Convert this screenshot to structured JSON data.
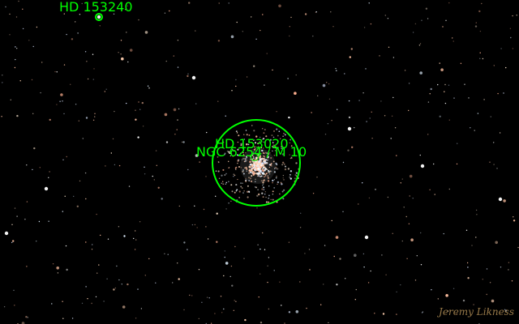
{
  "annotations": {
    "color": "#00ff00",
    "objects": [
      {
        "name": "HD 153240",
        "type": "star"
      },
      {
        "name": "HD 153020",
        "type": "star"
      },
      {
        "name": "NGC 6254 / M 10",
        "type": "globular-cluster"
      }
    ]
  },
  "signature": {
    "text": "Jeremy Likness",
    "color": "#c8a060"
  },
  "background": {
    "color": "#000000"
  }
}
